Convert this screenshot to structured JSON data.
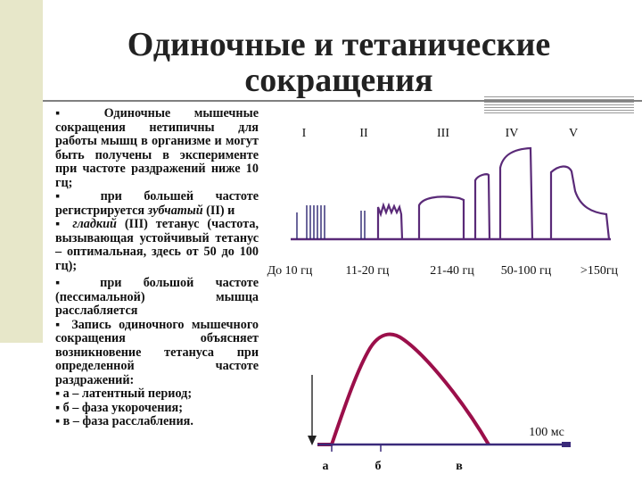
{
  "title": "Одиночные и тетанические сокращения",
  "bullets": [
    {
      "parts": [
        {
          "t": "▪ Одиночные мышечные сокращения нетипичны для работы мышц в организме и могут быть получены в эксперименте при частоте раздражений ниже 10 гц;"
        }
      ]
    },
    {
      "parts": [
        {
          "t": "▪ при большей частоте регистрируется "
        },
        {
          "t": "зубчатый",
          "i": true
        },
        {
          "t": " (II) и"
        }
      ]
    },
    {
      "parts": [
        {
          "t": "▪ "
        },
        {
          "t": "гладкий",
          "i": true
        },
        {
          "t": " (III) тетанус (час­тота, вызывающая устой­чивый тетанус – оптимальная, здесь от 50 до 100 гц);"
        }
      ]
    },
    {
      "parts": [
        {
          "t": "▪ при большой частоте (пессимальной) мышца расслабляется"
        }
      ]
    },
    {
      "parts": [
        {
          "t": "▪ Запись одиночного мышечного сокращения объясняет возникновение тетануса при определенной частоте раздражений:"
        }
      ]
    },
    {
      "parts": [
        {
          "t": "▪ а – латентный период;"
        }
      ]
    },
    {
      "parts": [
        {
          "t": "▪ б – фаза укорочения;"
        }
      ]
    },
    {
      "parts": [
        {
          "t": "▪ в – фаза расслабления."
        }
      ]
    }
  ],
  "tetanus_diagram": {
    "columns": [
      {
        "roman": "I",
        "freq": "До 10 гц"
      },
      {
        "roman": "II",
        "freq": "11-20 гц"
      },
      {
        "roman": "III",
        "freq": "21-40 гц"
      },
      {
        "roman": "IV",
        "freq": "50-100 гц"
      },
      {
        "roman": "V",
        "freq": ">150гц"
      }
    ]
  },
  "twitch_diagram": {
    "time_label": "100 мс",
    "phase_labels": [
      "а",
      "б",
      "в"
    ]
  },
  "colors": {
    "curve": "#6a2a78",
    "stim": "#3a2a7a",
    "accent_bar": "#e7e7c9"
  }
}
